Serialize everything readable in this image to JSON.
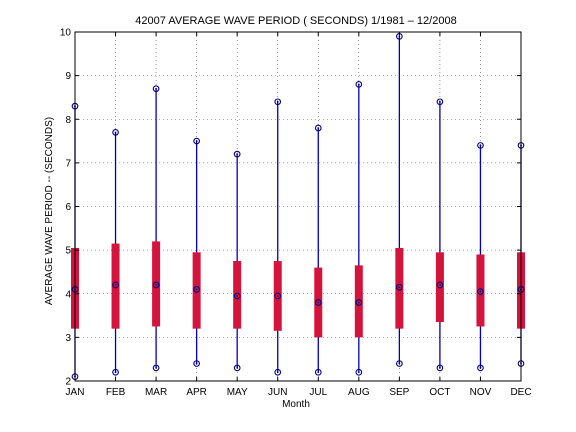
{
  "chart_data": {
    "type": "boxplot",
    "title": "42007  AVERAGE WAVE PERIOD ( SECONDS) 1/1981 – 12/2008",
    "xlabel": "Month",
    "ylabel": "AVERAGE WAVE PERIOD -- (SECONDS)",
    "ylim": [
      2,
      10
    ],
    "yticks": [
      "2",
      "3",
      "4",
      "5",
      "6",
      "7",
      "8",
      "9",
      "10"
    ],
    "grid": true,
    "categories": [
      "JAN",
      "FEB",
      "MAR",
      "APR",
      "MAY",
      "JUN",
      "JUL",
      "AUG",
      "SEP",
      "OCT",
      "NOV",
      "DEC"
    ],
    "min": [
      2.1,
      2.2,
      2.3,
      2.4,
      2.3,
      2.2,
      2.2,
      2.2,
      2.4,
      2.3,
      2.3,
      2.4
    ],
    "q1": [
      3.2,
      3.2,
      3.25,
      3.2,
      3.2,
      3.15,
      3.0,
      3.0,
      3.2,
      3.35,
      3.25,
      3.2
    ],
    "median": [
      4.1,
      4.2,
      4.2,
      4.1,
      3.95,
      3.95,
      3.8,
      3.8,
      4.15,
      4.2,
      4.05,
      4.1
    ],
    "q3": [
      5.05,
      5.15,
      5.2,
      4.95,
      4.75,
      4.75,
      4.6,
      4.65,
      5.05,
      4.95,
      4.9,
      4.95
    ],
    "max": [
      8.3,
      7.7,
      8.7,
      7.5,
      7.2,
      8.4,
      7.8,
      8.8,
      9.9,
      8.4,
      7.4,
      7.4
    ],
    "colors": {
      "whisker": "#0000bb",
      "box": "#d4143c",
      "marker": "#000088",
      "grid": "#555555"
    }
  }
}
